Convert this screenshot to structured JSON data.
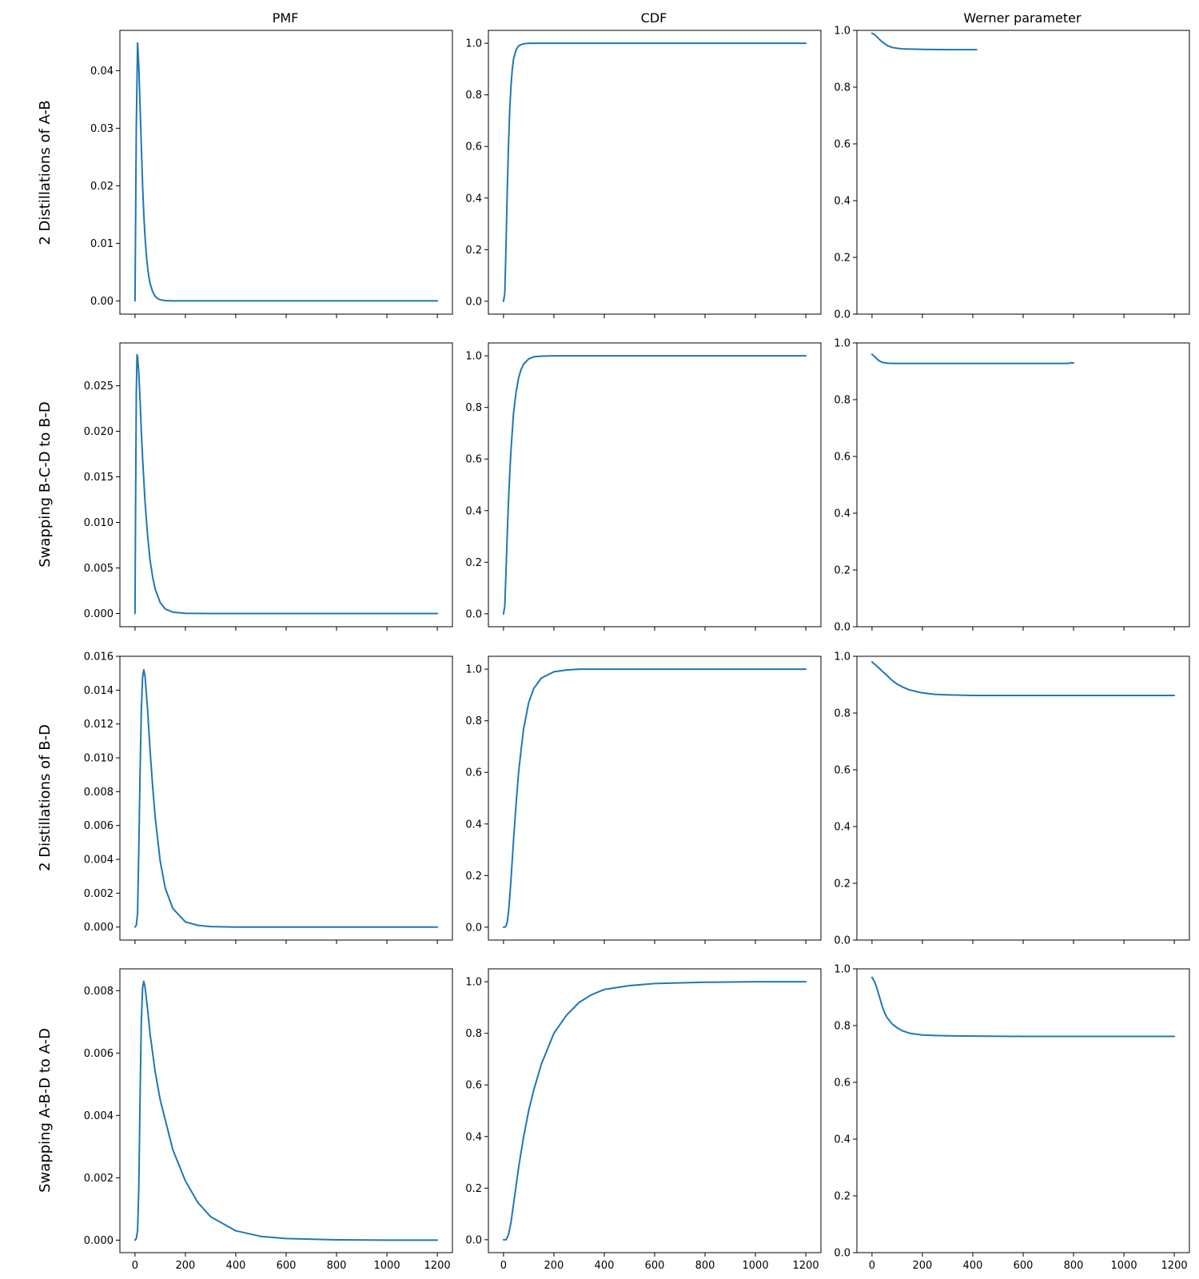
{
  "figure": {
    "column_titles": [
      "PMF",
      "CDF",
      "Werner parameter"
    ],
    "row_labels": [
      "2 Distillations of A-B",
      "Swapping B-C-D to B-D",
      "2 Distillations of B-D",
      "Swapping A-B-D to A-D"
    ],
    "series_color": "#1f77b4"
  },
  "chart_data": [
    {
      "type": "line",
      "title": "PMF",
      "row_label": "2 Distillations of A-B",
      "xlim": [
        -60,
        1260
      ],
      "ylim": [
        -0.0023,
        0.047
      ],
      "xticks": [
        0,
        200,
        400,
        600,
        800,
        1000,
        1200
      ],
      "xtick_labels_shown": false,
      "yticks": [
        0,
        0.01,
        0.02,
        0.03,
        0.04
      ],
      "ytick_labels": [
        "0.00",
        "0.01",
        "0.02",
        "0.03",
        "0.04"
      ],
      "series": [
        {
          "x": [
            0,
            5,
            10,
            15,
            20,
            25,
            30,
            35,
            40,
            45,
            50,
            55,
            60,
            70,
            80,
            90,
            100,
            120,
            150,
            200,
            300,
            600,
            1200
          ],
          "y": [
            0,
            0.03,
            0.0448,
            0.041,
            0.034,
            0.027,
            0.02,
            0.015,
            0.011,
            0.008,
            0.0058,
            0.0042,
            0.003,
            0.0016,
            0.0008,
            0.0004,
            0.0002,
            6e-05,
            1e-05,
            0,
            0,
            0,
            0
          ]
        }
      ]
    },
    {
      "type": "line",
      "title": "CDF",
      "row_label": "2 Distillations of A-B",
      "xlim": [
        -60,
        1260
      ],
      "ylim": [
        -0.05,
        1.05
      ],
      "xticks": [
        0,
        200,
        400,
        600,
        800,
        1000,
        1200
      ],
      "xtick_labels_shown": false,
      "yticks": [
        0,
        0.2,
        0.4,
        0.6,
        0.8,
        1.0
      ],
      "ytick_labels": [
        "0.0",
        "0.2",
        "0.4",
        "0.6",
        "0.8",
        "1.0"
      ],
      "series": [
        {
          "x": [
            0,
            5,
            10,
            15,
            20,
            25,
            30,
            35,
            40,
            50,
            60,
            70,
            80,
            100,
            150,
            1200
          ],
          "y": [
            0,
            0.03,
            0.22,
            0.43,
            0.61,
            0.75,
            0.84,
            0.9,
            0.94,
            0.975,
            0.99,
            0.995,
            0.998,
            1.0,
            1.0,
            1.0
          ]
        }
      ]
    },
    {
      "type": "line",
      "title": "Werner parameter",
      "row_label": "2 Distillations of A-B",
      "xlim": [
        -60,
        1260
      ],
      "ylim": [
        0,
        1.0
      ],
      "xticks": [
        0,
        200,
        400,
        600,
        800,
        1000,
        1200
      ],
      "xtick_labels_shown": false,
      "yticks": [
        0,
        0.2,
        0.4,
        0.6,
        0.8,
        1.0
      ],
      "ytick_labels": [
        "0.0",
        "0.2",
        "0.4",
        "0.6",
        "0.8",
        "1.0"
      ],
      "series": [
        {
          "x": [
            0,
            10,
            20,
            30,
            40,
            50,
            60,
            70,
            80,
            100,
            120,
            150,
            200,
            300,
            415
          ],
          "y": [
            0.99,
            0.985,
            0.977,
            0.968,
            0.96,
            0.953,
            0.947,
            0.943,
            0.94,
            0.937,
            0.935,
            0.934,
            0.933,
            0.932,
            0.932
          ]
        }
      ]
    },
    {
      "type": "line",
      "title": "PMF",
      "row_label": "Swapping B-C-D to B-D",
      "xlim": [
        -60,
        1260
      ],
      "ylim": [
        -0.00145,
        0.0297
      ],
      "xticks": [
        0,
        200,
        400,
        600,
        800,
        1000,
        1200
      ],
      "xtick_labels_shown": false,
      "yticks": [
        0,
        0.005,
        0.01,
        0.015,
        0.02,
        0.025
      ],
      "ytick_labels": [
        "0.000",
        "0.005",
        "0.010",
        "0.015",
        "0.020",
        "0.025"
      ],
      "series": [
        {
          "x": [
            0,
            2,
            5,
            8,
            10,
            15,
            20,
            25,
            30,
            40,
            50,
            60,
            70,
            80,
            100,
            120,
            150,
            200,
            300,
            600,
            1200
          ],
          "y": [
            0,
            0.01,
            0.024,
            0.0284,
            0.0282,
            0.0265,
            0.0235,
            0.02,
            0.017,
            0.0122,
            0.0085,
            0.0058,
            0.004,
            0.0027,
            0.0012,
            0.0005,
            0.00015,
            2e-05,
            0,
            0,
            0
          ]
        }
      ]
    },
    {
      "type": "line",
      "title": "CDF",
      "row_label": "Swapping B-C-D to B-D",
      "xlim": [
        -60,
        1260
      ],
      "ylim": [
        -0.05,
        1.05
      ],
      "xticks": [
        0,
        200,
        400,
        600,
        800,
        1000,
        1200
      ],
      "xtick_labels_shown": false,
      "yticks": [
        0,
        0.2,
        0.4,
        0.6,
        0.8,
        1.0
      ],
      "ytick_labels": [
        "0.0",
        "0.2",
        "0.4",
        "0.6",
        "0.8",
        "1.0"
      ],
      "series": [
        {
          "x": [
            0,
            5,
            10,
            15,
            20,
            25,
            30,
            40,
            50,
            60,
            70,
            80,
            100,
            120,
            150,
            200,
            1200
          ],
          "y": [
            0,
            0.03,
            0.17,
            0.31,
            0.44,
            0.55,
            0.64,
            0.78,
            0.86,
            0.915,
            0.948,
            0.968,
            0.988,
            0.996,
            0.999,
            1.0,
            1.0
          ]
        }
      ]
    },
    {
      "type": "line",
      "title": "Werner parameter",
      "row_label": "Swapping B-C-D to B-D",
      "xlim": [
        -60,
        1260
      ],
      "ylim": [
        0,
        1.0
      ],
      "xticks": [
        0,
        200,
        400,
        600,
        800,
        1000,
        1200
      ],
      "xtick_labels_shown": false,
      "yticks": [
        0,
        0.2,
        0.4,
        0.6,
        0.8,
        1.0
      ],
      "ytick_labels": [
        "0.0",
        "0.2",
        "0.4",
        "0.6",
        "0.8",
        "1.0"
      ],
      "series": [
        {
          "x": [
            0,
            10,
            20,
            30,
            40,
            50,
            60,
            80,
            100,
            150,
            200,
            400,
            600,
            780,
            790,
            800
          ],
          "y": [
            0.96,
            0.952,
            0.943,
            0.936,
            0.932,
            0.93,
            0.929,
            0.928,
            0.928,
            0.928,
            0.928,
            0.928,
            0.928,
            0.928,
            0.93,
            0.929
          ]
        }
      ]
    },
    {
      "type": "line",
      "title": "PMF",
      "row_label": "2 Distillations of B-D",
      "xlim": [
        -60,
        1260
      ],
      "ylim": [
        -0.00077,
        0.016
      ],
      "xticks": [
        0,
        200,
        400,
        600,
        800,
        1000,
        1200
      ],
      "xtick_labels_shown": false,
      "yticks": [
        0,
        0.002,
        0.004,
        0.006,
        0.008,
        0.01,
        0.012,
        0.014,
        0.016
      ],
      "ytick_labels": [
        "0.000",
        "0.002",
        "0.004",
        "0.006",
        "0.008",
        "0.010",
        "0.012",
        "0.014",
        "0.016"
      ],
      "series": [
        {
          "x": [
            0,
            5,
            10,
            15,
            20,
            25,
            30,
            35,
            40,
            50,
            60,
            70,
            80,
            100,
            120,
            150,
            200,
            250,
            300,
            400,
            600,
            1200
          ],
          "y": [
            0,
            0.0001,
            0.0008,
            0.0045,
            0.009,
            0.0128,
            0.0148,
            0.0152,
            0.0148,
            0.0128,
            0.0104,
            0.0083,
            0.0065,
            0.0039,
            0.0023,
            0.0011,
            0.0003,
            0.0001,
            3e-05,
            0,
            0,
            0
          ]
        }
      ]
    },
    {
      "type": "line",
      "title": "CDF",
      "row_label": "2 Distillations of B-D",
      "xlim": [
        -60,
        1260
      ],
      "ylim": [
        -0.05,
        1.05
      ],
      "xticks": [
        0,
        200,
        400,
        600,
        800,
        1000,
        1200
      ],
      "xtick_labels_shown": false,
      "yticks": [
        0,
        0.2,
        0.4,
        0.6,
        0.8,
        1.0
      ],
      "ytick_labels": [
        "0.0",
        "0.2",
        "0.4",
        "0.6",
        "0.8",
        "1.0"
      ],
      "series": [
        {
          "x": [
            0,
            5,
            10,
            15,
            20,
            25,
            30,
            40,
            50,
            60,
            70,
            80,
            100,
            120,
            150,
            200,
            250,
            300,
            1200
          ],
          "y": [
            0,
            0.0,
            0.005,
            0.02,
            0.06,
            0.12,
            0.19,
            0.34,
            0.48,
            0.6,
            0.69,
            0.77,
            0.87,
            0.925,
            0.965,
            0.99,
            0.997,
            1.0,
            1.0
          ]
        }
      ]
    },
    {
      "type": "line",
      "title": "Werner parameter",
      "row_label": "2 Distillations of B-D",
      "xlim": [
        -60,
        1260
      ],
      "ylim": [
        0,
        1.0
      ],
      "xticks": [
        0,
        200,
        400,
        600,
        800,
        1000,
        1200
      ],
      "xtick_labels_shown": false,
      "yticks": [
        0,
        0.2,
        0.4,
        0.6,
        0.8,
        1.0
      ],
      "ytick_labels": [
        "0.0",
        "0.2",
        "0.4",
        "0.6",
        "0.8",
        "1.0"
      ],
      "series": [
        {
          "x": [
            0,
            20,
            40,
            60,
            80,
            100,
            120,
            150,
            200,
            250,
            300,
            400,
            600,
            1200
          ],
          "y": [
            0.98,
            0.965,
            0.948,
            0.932,
            0.915,
            0.902,
            0.892,
            0.881,
            0.871,
            0.866,
            0.864,
            0.862,
            0.862,
            0.862
          ]
        }
      ]
    },
    {
      "type": "line",
      "title": "PMF",
      "row_label": "Swapping A-B-D to A-D",
      "xlim": [
        -60,
        1260
      ],
      "ylim": [
        -0.0004,
        0.0087
      ],
      "xticks": [
        0,
        200,
        400,
        600,
        800,
        1000,
        1200
      ],
      "xtick_labels": [
        "0",
        "200",
        "400",
        "600",
        "800",
        "1000",
        "1200"
      ],
      "yticks": [
        0,
        0.002,
        0.004,
        0.006,
        0.008
      ],
      "ytick_labels": [
        "0.000",
        "0.002",
        "0.004",
        "0.006",
        "0.008"
      ],
      "series": [
        {
          "x": [
            0,
            5,
            10,
            15,
            20,
            25,
            30,
            35,
            40,
            50,
            60,
            80,
            100,
            150,
            200,
            250,
            300,
            400,
            500,
            600,
            800,
            1000,
            1200
          ],
          "y": [
            0,
            5e-05,
            0.0003,
            0.0016,
            0.0045,
            0.007,
            0.0081,
            0.0083,
            0.0081,
            0.0074,
            0.0066,
            0.0054,
            0.0045,
            0.0029,
            0.0019,
            0.0012,
            0.00075,
            0.0003,
            0.00012,
            5e-05,
            1e-05,
            0,
            0
          ]
        }
      ]
    },
    {
      "type": "line",
      "title": "CDF",
      "row_label": "Swapping A-B-D to A-D",
      "xlim": [
        -60,
        1260
      ],
      "ylim": [
        -0.05,
        1.05
      ],
      "xticks": [
        0,
        200,
        400,
        600,
        800,
        1000,
        1200
      ],
      "xtick_labels": [
        "0",
        "200",
        "400",
        "600",
        "800",
        "1000",
        "1200"
      ],
      "yticks": [
        0,
        0.2,
        0.4,
        0.6,
        0.8,
        1.0
      ],
      "ytick_labels": [
        "0.0",
        "0.2",
        "0.4",
        "0.6",
        "0.8",
        "1.0"
      ],
      "series": [
        {
          "x": [
            0,
            10,
            20,
            30,
            40,
            50,
            60,
            80,
            100,
            120,
            150,
            200,
            250,
            300,
            350,
            400,
            500,
            600,
            800,
            1000,
            1200
          ],
          "y": [
            0,
            0.0,
            0.02,
            0.07,
            0.14,
            0.21,
            0.28,
            0.4,
            0.5,
            0.58,
            0.68,
            0.8,
            0.87,
            0.92,
            0.95,
            0.97,
            0.985,
            0.993,
            0.998,
            1.0,
            1.0
          ]
        }
      ]
    },
    {
      "type": "line",
      "title": "Werner parameter",
      "row_label": "Swapping A-B-D to A-D",
      "xlim": [
        -60,
        1260
      ],
      "ylim": [
        0,
        1.0
      ],
      "xticks": [
        0,
        200,
        400,
        600,
        800,
        1000,
        1200
      ],
      "xtick_labels": [
        "0",
        "200",
        "400",
        "600",
        "800",
        "1000",
        "1200"
      ],
      "yticks": [
        0,
        0.2,
        0.4,
        0.6,
        0.8,
        1.0
      ],
      "ytick_labels": [
        "0.0",
        "0.2",
        "0.4",
        "0.6",
        "0.8",
        "1.0"
      ],
      "series": [
        {
          "x": [
            0,
            10,
            20,
            30,
            40,
            50,
            60,
            80,
            100,
            120,
            150,
            200,
            250,
            300,
            400,
            600,
            1200
          ],
          "y": [
            0.97,
            0.955,
            0.93,
            0.9,
            0.87,
            0.845,
            0.828,
            0.806,
            0.792,
            0.782,
            0.773,
            0.767,
            0.765,
            0.764,
            0.763,
            0.762,
            0.762
          ]
        }
      ]
    }
  ]
}
